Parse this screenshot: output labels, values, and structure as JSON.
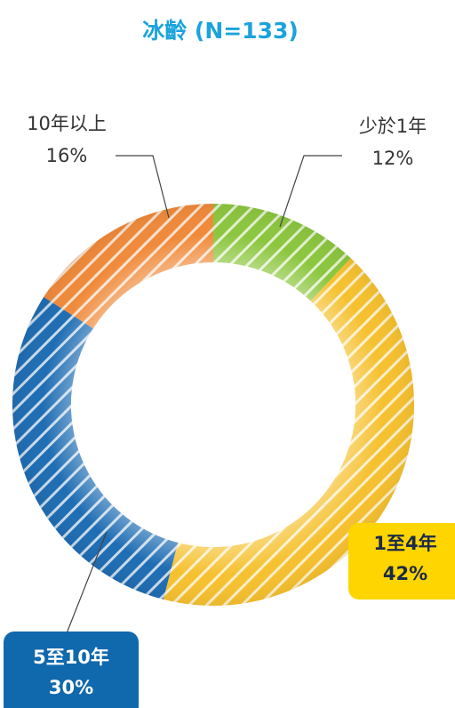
{
  "chart_data": {
    "type": "donut",
    "title": "冰齡 (N=133)",
    "categories": [
      "少於1年",
      "1至4年",
      "5至10年",
      "10年以上"
    ],
    "values": [
      12,
      42,
      30,
      16
    ],
    "value_labels": [
      "12%",
      "42%",
      "30%",
      "16%"
    ],
    "colors": [
      "#8cc63f",
      "#f6c12f",
      "#1f6db3",
      "#f08a3b"
    ]
  }
}
